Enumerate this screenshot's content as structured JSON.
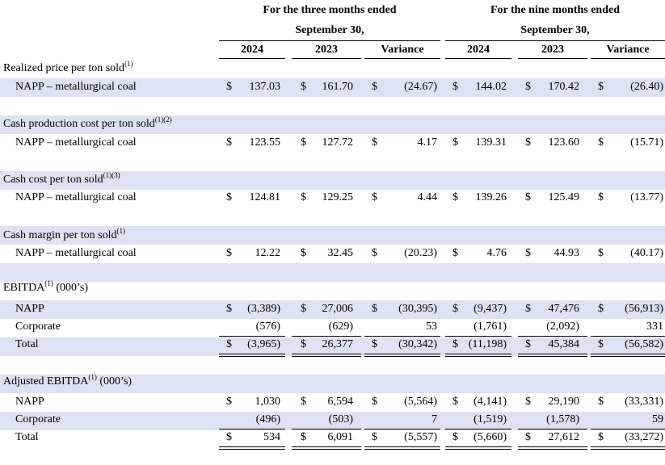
{
  "header": {
    "three_months": [
      "For the three months ended",
      "September 30,"
    ],
    "nine_months": [
      "For the nine months ended",
      "September 30,"
    ],
    "columns": [
      "2024",
      "2023",
      "Variance",
      "2024",
      "2023",
      "Variance"
    ]
  },
  "sections": [
    {
      "title": "Realized price per ton sold",
      "note": "(1)",
      "suffix": "",
      "rows": [
        {
          "label": "NAPP – metallurgical coal",
          "currency": true,
          "values": [
            "137.03",
            "161.70",
            "(24.67)",
            "144.02",
            "170.42",
            "(26.40)"
          ]
        }
      ]
    },
    {
      "title": "Cash production cost per ton sold",
      "note": "(1)(2)",
      "suffix": "",
      "rows": [
        {
          "label": "NAPP – metallurgical coal",
          "currency": true,
          "values": [
            "123.55",
            "127.72",
            "4.17",
            "139.31",
            "123.60",
            "(15.71)"
          ]
        }
      ]
    },
    {
      "title": "Cash cost per ton sold",
      "note": "(1)(3)",
      "suffix": "",
      "rows": [
        {
          "label": "NAPP – metallurgical coal",
          "currency": true,
          "values": [
            "124.81",
            "129.25",
            "4.44",
            "139.26",
            "125.49",
            "(13.77)"
          ]
        }
      ]
    },
    {
      "title": "Cash margin per ton sold",
      "note": "(1)",
      "suffix": "",
      "rows": [
        {
          "label": "NAPP – metallurgical coal",
          "currency": true,
          "values": [
            "12.22",
            "32.45",
            "(20.23)",
            "4.76",
            "44.93",
            "(40.17)"
          ]
        }
      ]
    },
    {
      "title": "EBITDA",
      "note": "(1)",
      "suffix": " (000’s)",
      "rows": [
        {
          "label": "NAPP",
          "currency": true,
          "values": [
            "(3,389)",
            "27,006",
            "(30,395)",
            "(9,437)",
            "47,476",
            "(56,913)"
          ]
        },
        {
          "label": "Corporate",
          "currency": false,
          "values": [
            "(576)",
            "(629)",
            "53",
            "(1,761)",
            "(2,092)",
            "331"
          ]
        },
        {
          "label": "Total",
          "currency": true,
          "values": [
            "(3,965)",
            "26,377",
            "(30,342)",
            "(11,198)",
            "45,384",
            "(56,582)"
          ]
        }
      ]
    },
    {
      "title": "Adjusted EBITDA",
      "note": "(1)",
      "suffix": " (000’s)",
      "rows": [
        {
          "label": "NAPP",
          "currency": true,
          "values": [
            "1,030",
            "6,594",
            "(5,564)",
            "(4,141)",
            "29,190",
            "(33,331)"
          ]
        },
        {
          "label": "Corporate",
          "currency": false,
          "values": [
            "(496)",
            "(503)",
            "7",
            "(1,519)",
            "(1,578)",
            "59"
          ]
        },
        {
          "label": "Total",
          "currency": true,
          "values": [
            "534",
            "6,091",
            "(5,557)",
            "(5,660)",
            "27,612",
            "(33,272)"
          ]
        }
      ]
    }
  ],
  "currency_symbol": "$"
}
